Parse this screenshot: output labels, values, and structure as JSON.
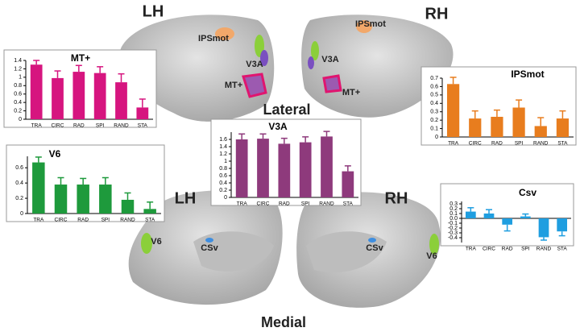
{
  "chart_data": [
    {
      "type": "bar",
      "title": "MT+",
      "categories": [
        "TRA",
        "CIRC",
        "RAD",
        "SPI",
        "RAND",
        "STA"
      ],
      "values": [
        1.3,
        0.98,
        1.13,
        1.1,
        0.88,
        0.28
      ],
      "errors": [
        0.1,
        0.17,
        0.15,
        0.15,
        0.2,
        0.2
      ],
      "color": "#d6157f",
      "ylim": [
        0,
        1.4
      ],
      "yticks": [
        0,
        0.2,
        0.4,
        0.6,
        0.8,
        1,
        1.2,
        1.4
      ]
    },
    {
      "type": "bar",
      "title": "IPSmot",
      "categories": [
        "TRA",
        "CIRC",
        "RAD",
        "SPI",
        "RAND",
        "STA"
      ],
      "values": [
        0.63,
        0.22,
        0.24,
        0.35,
        0.13,
        0.22
      ],
      "errors": [
        0.08,
        0.09,
        0.08,
        0.09,
        0.1,
        0.09
      ],
      "color": "#e87d1e",
      "ylim": [
        0,
        0.7
      ],
      "yticks": [
        0,
        0.1,
        0.2,
        0.3,
        0.4,
        0.5,
        0.6,
        0.7
      ]
    },
    {
      "type": "bar",
      "title": "V3A",
      "categories": [
        "TRA",
        "CIRC",
        "RAD",
        "SPI",
        "RAND",
        "STA"
      ],
      "values": [
        1.6,
        1.62,
        1.48,
        1.52,
        1.68,
        0.72
      ],
      "errors": [
        0.15,
        0.13,
        0.15,
        0.15,
        0.14,
        0.15
      ],
      "color": "#8e3a7c",
      "ylim": [
        0,
        1.8
      ],
      "yticks": [
        0,
        0.2,
        0.4,
        0.6,
        0.8,
        1,
        1.2,
        1.4,
        1.6
      ]
    },
    {
      "type": "bar",
      "title": "V6",
      "categories": [
        "TRA",
        "CIRC",
        "RAD",
        "SPI",
        "RAND",
        "STA"
      ],
      "values": [
        0.67,
        0.38,
        0.38,
        0.38,
        0.18,
        0.06
      ],
      "errors": [
        0.07,
        0.09,
        0.08,
        0.09,
        0.09,
        0.09
      ],
      "color": "#1e9a3c",
      "ylim": [
        0,
        0.75
      ],
      "yticks": [
        0,
        0.2,
        0.4,
        0.6
      ]
    },
    {
      "type": "bar",
      "title": "Csv",
      "categories": [
        "TRA",
        "CIRC",
        "RAD",
        "SPI",
        "RAND",
        "STA"
      ],
      "values": [
        0.14,
        0.1,
        -0.13,
        0.04,
        -0.39,
        -0.27
      ],
      "errors": [
        0.08,
        0.08,
        0.13,
        0.05,
        0.06,
        0.09
      ],
      "color": "#1f9ee0",
      "ylim": [
        -0.5,
        0.35
      ],
      "yticks": [
        -0.4,
        -0.3,
        -0.2,
        -0.1,
        {
          "value": 0,
          "label": "0.0"
        },
        0.1,
        0.2,
        0.3
      ]
    }
  ],
  "labels": {
    "lh": "LH",
    "rh": "RH",
    "lateral": "Lateral",
    "medial": "Medial",
    "lh2": "LH",
    "rh2": "RH",
    "ipsmot_l": "IPSmot",
    "v3a_l": "V3A",
    "mt_l": "MT+",
    "ipsmot_r": "IPSmot",
    "v3a_r": "V3A",
    "mt_r": "MT+",
    "v6_l": "V6",
    "csv_l": "CSv",
    "csv_r": "CSv",
    "v6_r": "V6"
  }
}
